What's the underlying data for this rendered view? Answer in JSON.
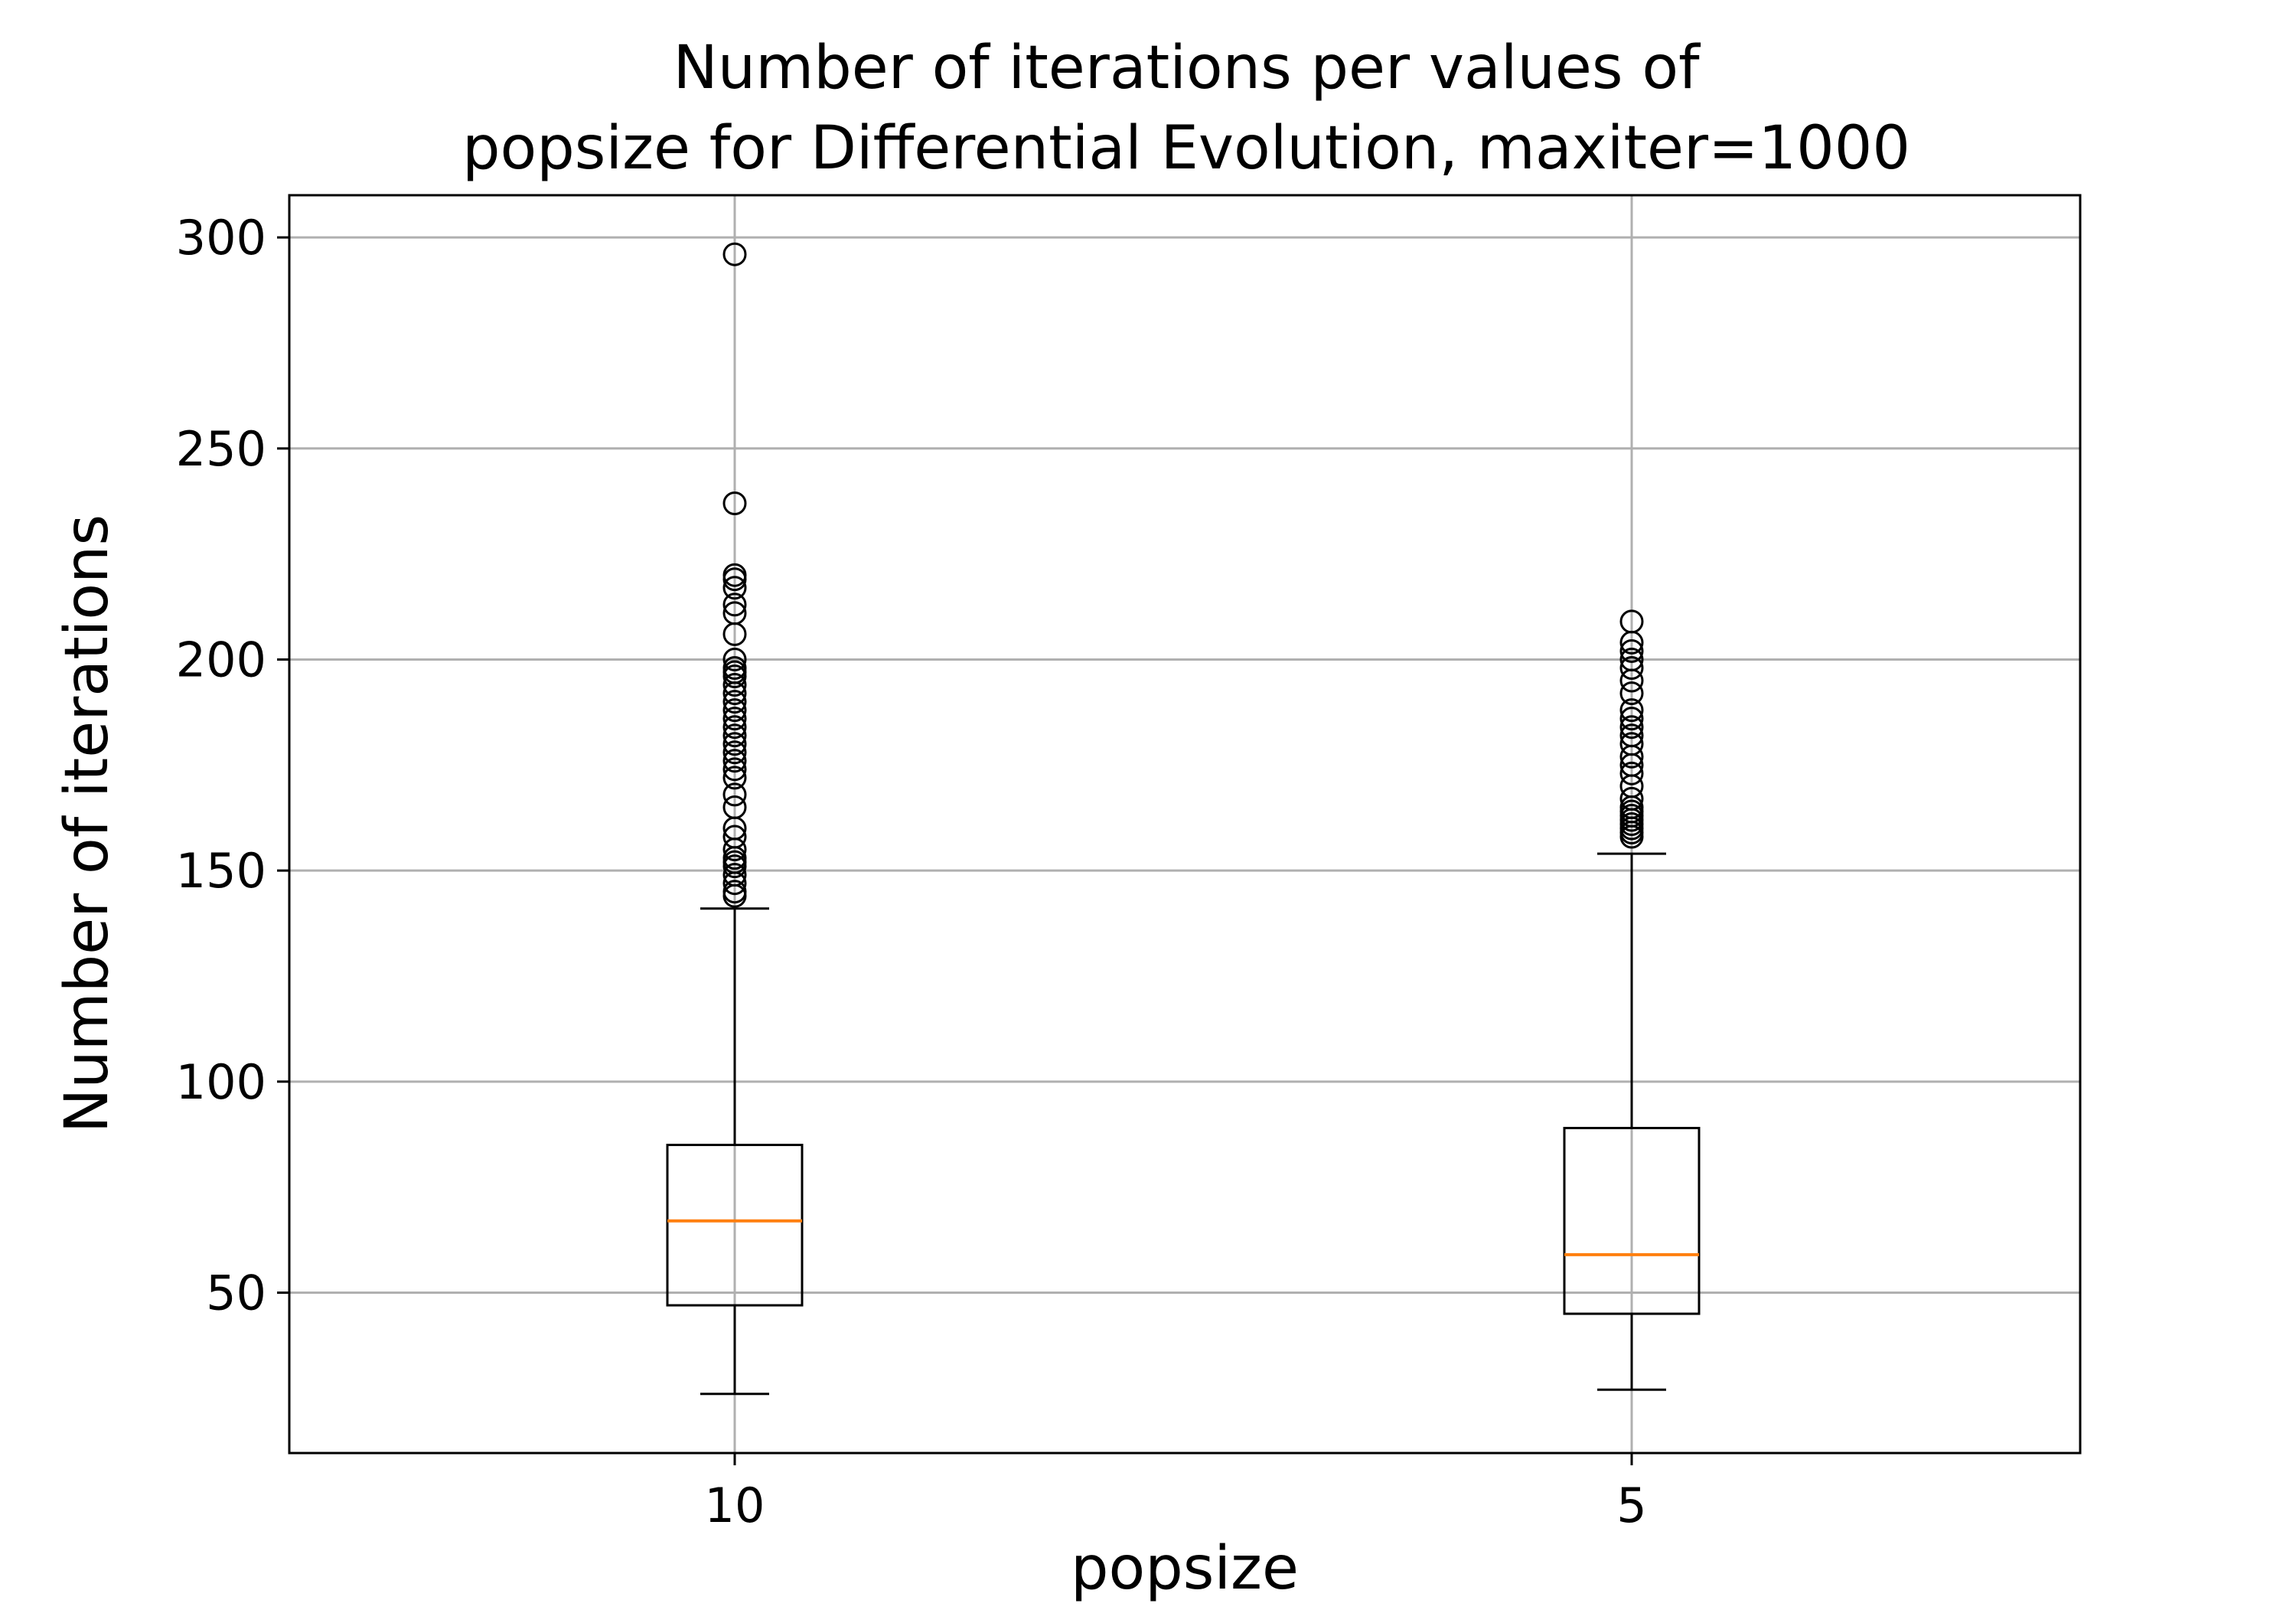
{
  "chart_data": {
    "type": "box",
    "title": "Number of iterations per values of\npopsize for Differential Evolution, maxiter=1000",
    "xlabel": "popsize",
    "ylabel": "Number of iterations",
    "categories": [
      "10",
      "5"
    ],
    "ylim": [
      12,
      310
    ],
    "yticks": [
      50,
      100,
      150,
      200,
      250,
      300
    ],
    "grid": true,
    "boxes": [
      {
        "category": "10",
        "whisker_low": 26,
        "q1": 47,
        "median": 67,
        "q3": 85,
        "whisker_high": 141,
        "outliers": [
          144,
          145,
          147,
          149,
          151,
          152,
          153,
          155,
          158,
          160,
          165,
          168,
          172,
          174,
          176,
          178,
          180,
          182,
          184,
          186,
          188,
          190,
          192,
          194,
          196,
          197,
          198,
          200,
          206,
          211,
          213,
          217,
          219,
          220,
          237,
          296
        ]
      },
      {
        "category": "5",
        "whisker_low": 27,
        "q1": 45,
        "median": 59,
        "q3": 89,
        "whisker_high": 154,
        "outliers": [
          158,
          159,
          160,
          161,
          162,
          163,
          164,
          165,
          167,
          170,
          173,
          175,
          177,
          180,
          182,
          184,
          186,
          188,
          192,
          195,
          198,
          200,
          202,
          204,
          209
        ]
      }
    ],
    "colors": {
      "box": "#000000",
      "median": "#ff7f0e",
      "grid": "#b0b0b0"
    }
  }
}
